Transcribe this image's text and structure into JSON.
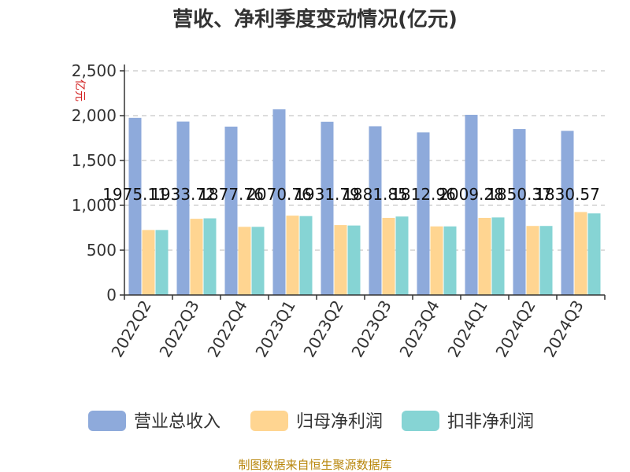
{
  "chart_data": {
    "type": "bar",
    "title": "营收、净利季度变动情况(亿元)",
    "ylabel": "亿元",
    "ylim": [
      0,
      2500
    ],
    "yticks": [
      "0",
      "500",
      "1,000",
      "1,500",
      "2,000",
      "2,500"
    ],
    "categories": [
      "2022Q2",
      "2022Q3",
      "2022Q4",
      "2023Q1",
      "2023Q2",
      "2023Q3",
      "2023Q4",
      "2024Q1",
      "2024Q2",
      "2024Q3"
    ],
    "series": [
      {
        "name": "营业总收入",
        "color": "#8eaadb",
        "values": [
          1975.11,
          1933.72,
          1877.76,
          2070.76,
          1931.79,
          1881.85,
          1812.96,
          2009.28,
          1850.37,
          1830.57
        ],
        "labels": [
          "1975.11",
          "1933.72",
          "1877.76",
          "2070.76",
          "1931.79",
          "1881.85",
          "1812.96",
          "2009.28",
          "1850.37",
          "1830.57"
        ]
      },
      {
        "name": "归母净利润",
        "color": "#ffd591",
        "values": [
          725,
          850,
          760,
          885,
          780,
          860,
          765,
          860,
          770,
          925
        ]
      },
      {
        "name": "扣非净利润",
        "color": "#86d4d4",
        "values": [
          725,
          855,
          760,
          880,
          775,
          875,
          765,
          865,
          770,
          910
        ]
      }
    ],
    "grid": true,
    "legend": "bottom"
  },
  "footer": {
    "source": "制图数据来自恒生聚源数据库"
  }
}
